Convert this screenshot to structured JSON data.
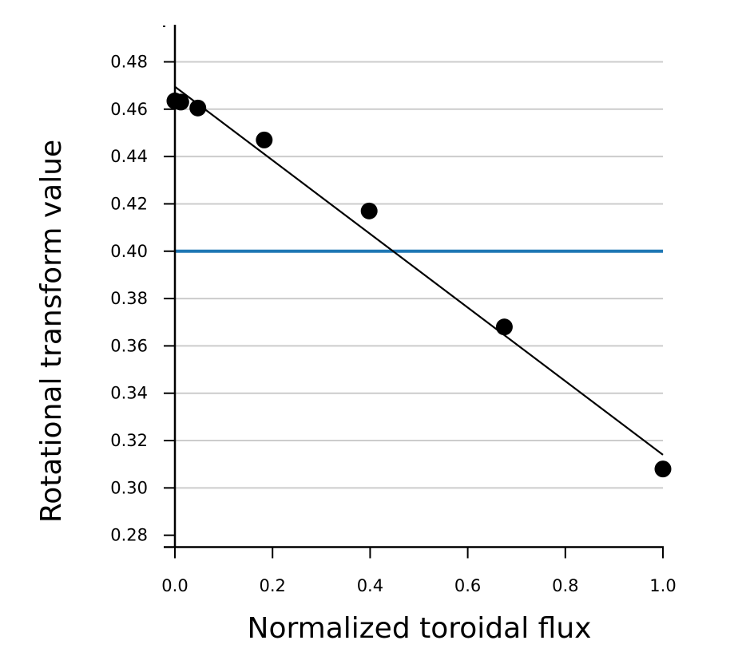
{
  "chart_data": {
    "type": "scatter",
    "title": "",
    "xlabel": "Normalized toroidal flux",
    "ylabel": "Rotational transform value",
    "xlim": [
      0.0,
      1.0
    ],
    "ylim": [
      0.275,
      0.495
    ],
    "x_ticks": [
      "0.0",
      "0.2",
      "0.4",
      "0.6",
      "0.8",
      "1.0"
    ],
    "y_ticks": [
      "0.28",
      "0.30",
      "0.32",
      "0.34",
      "0.36",
      "0.38",
      "0.40",
      "0.42",
      "0.44",
      "0.46",
      "0.48"
    ],
    "grid": "horizontal",
    "points": {
      "x": [
        0.0,
        0.012,
        0.047,
        0.183,
        0.398,
        0.675,
        1.0
      ],
      "y": [
        0.4635,
        0.463,
        0.4605,
        0.447,
        0.417,
        0.368,
        0.308
      ],
      "color": "#000000"
    },
    "fit_line": {
      "x": [
        0.0,
        1.0
      ],
      "y": [
        0.4695,
        0.314
      ],
      "color": "#000000"
    },
    "reference_line": {
      "y": 0.4,
      "color": "#1f77b4"
    }
  }
}
